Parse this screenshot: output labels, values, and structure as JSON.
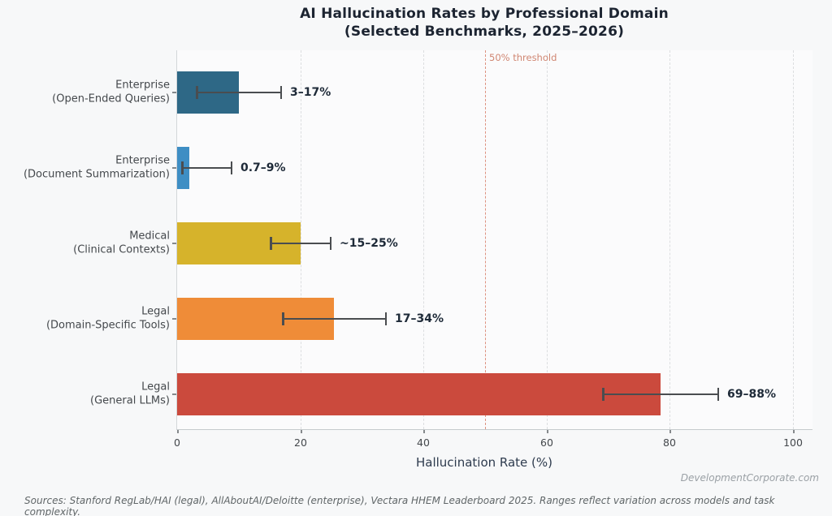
{
  "title": {
    "line1": "AI Hallucination Rates by Professional Domain",
    "line2": "(Selected Benchmarks, 2025–2026)"
  },
  "watermark": "DevelopmentCorporate.com",
  "footer": "Sources: Stanford RegLab/HAI (legal), AllAboutAI/Deloitte (enterprise), Vectara HHEM Leaderboard 2025. Ranges reflect variation across models and task complexity.",
  "chart_data": {
    "type": "bar",
    "orientation": "horizontal",
    "title": "AI Hallucination Rates by Professional Domain (Selected Benchmarks, 2025–2026)",
    "xlabel": "Hallucination Rate (%)",
    "xlim": [
      0,
      100
    ],
    "xticks": [
      0,
      20,
      40,
      60,
      80,
      100
    ],
    "gridlines": [
      20,
      40,
      60,
      80,
      100
    ],
    "grid": "vertical-dashed",
    "legend": "none",
    "threshold": {
      "value": 50,
      "label": "50% threshold"
    },
    "categories": [
      "Enterprise (Open-Ended Queries)",
      "Enterprise (Document Summarization)",
      "Medical (Clinical Contexts)",
      "Legal (Domain-Specific Tools)",
      "Legal (General LLMs)"
    ],
    "rows": [
      {
        "label_line1": "Enterprise",
        "label_line2": "(Open-Ended Queries)",
        "value": 10,
        "range_low": 3,
        "range_high": 17,
        "range_label": "3–17%",
        "color": "#2e6886"
      },
      {
        "label_line1": "Enterprise",
        "label_line2": "(Document Summarization)",
        "value": 2,
        "range_low": 0.7,
        "range_high": 9,
        "range_label": "0.7–9%",
        "color": "#3e8ec4"
      },
      {
        "label_line1": "Medical",
        "label_line2": "(Clinical Contexts)",
        "value": 20,
        "range_low": 15,
        "range_high": 25,
        "range_label": "~15–25%",
        "color": "#d6b32b"
      },
      {
        "label_line1": "Legal",
        "label_line2": "(Domain-Specific Tools)",
        "value": 25.5,
        "range_low": 17,
        "range_high": 34,
        "range_label": "17–34%",
        "color": "#ef8c38"
      },
      {
        "label_line1": "Legal",
        "label_line2": "(General LLMs)",
        "value": 78.5,
        "range_low": 69,
        "range_high": 88,
        "range_label": "69–88%",
        "color": "#cb4a3d"
      }
    ]
  }
}
